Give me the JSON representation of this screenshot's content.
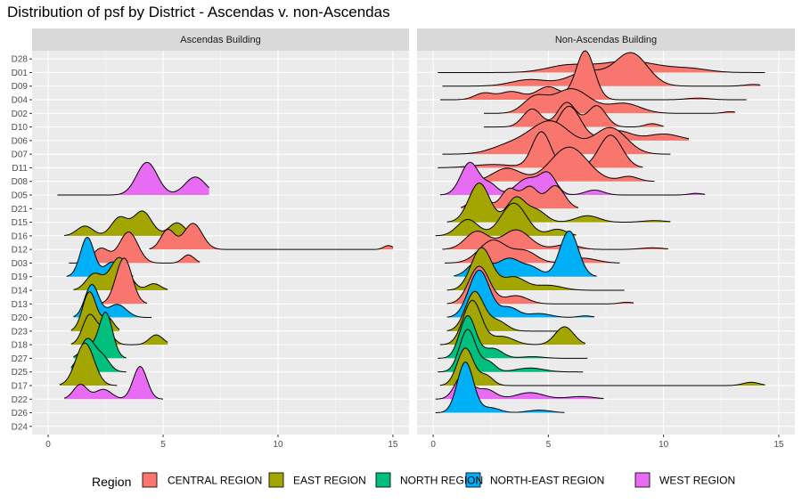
{
  "chart_data": {
    "type": "ridgeline",
    "title": "Distribution of psf by District - Ascendas v. non-Ascendas",
    "panels": [
      "Ascendas Building",
      "Non-Ascendas Building"
    ],
    "districts": [
      "D28",
      "D01",
      "D09",
      "D04",
      "D02",
      "D10",
      "D06",
      "D07",
      "D11",
      "D08",
      "D05",
      "D21",
      "D15",
      "D16",
      "D12",
      "D03",
      "D19",
      "D14",
      "D13",
      "D20",
      "D23",
      "D18",
      "D27",
      "D25",
      "D17",
      "D22",
      "D26",
      "D24"
    ],
    "district_region": {
      "D28": "CENTRAL REGION",
      "D01": "CENTRAL REGION",
      "D09": "CENTRAL REGION",
      "D04": "CENTRAL REGION",
      "D02": "CENTRAL REGION",
      "D10": "CENTRAL REGION",
      "D06": "CENTRAL REGION",
      "D07": "CENTRAL REGION",
      "D11": "CENTRAL REGION",
      "D08": "CENTRAL REGION",
      "D05": "WEST REGION",
      "D21": "CENTRAL REGION",
      "D15": "EAST REGION",
      "D16": "EAST REGION",
      "D12": "CENTRAL REGION",
      "D03": "CENTRAL REGION",
      "D19": "NORTH-EAST REGION",
      "D14": "EAST REGION",
      "D13": "CENTRAL REGION",
      "D20": "NORTH-EAST REGION",
      "D23": "EAST REGION",
      "D18": "EAST REGION",
      "D27": "NORTH REGION",
      "D25": "NORTH REGION",
      "D17": "EAST REGION",
      "D22": "WEST REGION",
      "D26": "NORTH-EAST REGION",
      "D24": "WEST REGION"
    },
    "xlim": [
      -0.7,
      15.7
    ],
    "x_ticks": [
      0,
      5,
      10,
      15
    ],
    "y_labels": [
      "D28",
      "D01",
      "D09",
      "D04",
      "D02",
      "D10",
      "D06",
      "D07",
      "D11",
      "D08",
      "D05",
      "D21",
      "D15",
      "D16",
      "D12",
      "D03",
      "D19",
      "D14",
      "D13",
      "D20",
      "D23",
      "D18",
      "D27",
      "D25",
      "D17",
      "D22",
      "D26",
      "D24"
    ],
    "legend": {
      "title": "Region",
      "position": "bottom",
      "items": [
        {
          "label": "CENTRAL REGION",
          "color": "#F8766D"
        },
        {
          "label": "EAST REGION",
          "color": "#A3A500"
        },
        {
          "label": "NORTH REGION",
          "color": "#00BF7D"
        },
        {
          "label": "NORTH-EAST REGION",
          "color": "#00B0F6"
        },
        {
          "label": "WEST REGION",
          "color": "#E76BF3"
        }
      ]
    },
    "ridges": {
      "Ascendas Building": [
        {
          "district": "D05",
          "region": "WEST REGION",
          "min": 0.4,
          "max": 7.0,
          "peaks": [
            [
              4.3,
              1.0,
              0.45
            ],
            [
              6.4,
              0.55,
              0.45
            ]
          ]
        },
        {
          "district": "D16",
          "region": "EAST REGION",
          "min": 0.7,
          "max": 6.1,
          "peaks": [
            [
              1.6,
              0.3,
              0.35
            ],
            [
              3.1,
              0.55,
              0.35
            ],
            [
              4.1,
              0.75,
              0.4
            ],
            [
              5.6,
              0.4,
              0.35
            ]
          ]
        },
        {
          "district": "D12",
          "region": "CENTRAL REGION",
          "min": 4.4,
          "max": 15.0,
          "peaks": [
            [
              5.2,
              0.6,
              0.3
            ],
            [
              6.3,
              0.8,
              0.4
            ],
            [
              14.8,
              0.12,
              0.2
            ]
          ]
        },
        {
          "district": "D03",
          "region": "CENTRAL REGION",
          "min": 0.9,
          "max": 6.6,
          "peaks": [
            [
              2.3,
              0.45,
              0.35
            ],
            [
              3.5,
              0.95,
              0.4
            ],
            [
              6.1,
              0.25,
              0.25
            ]
          ]
        },
        {
          "district": "D19",
          "region": "NORTH-EAST REGION",
          "min": 0.8,
          "max": 3.7,
          "peaks": [
            [
              1.7,
              1.2,
              0.3
            ],
            [
              2.8,
              0.45,
              0.35
            ]
          ]
        },
        {
          "district": "D14",
          "region": "EAST REGION",
          "min": 1.1,
          "max": 5.2,
          "peaks": [
            [
              2.0,
              0.5,
              0.35
            ],
            [
              3.1,
              1.0,
              0.4
            ],
            [
              4.6,
              0.2,
              0.3
            ]
          ]
        },
        {
          "district": "D13",
          "region": "CENTRAL REGION",
          "min": 2.3,
          "max": 4.3,
          "peaks": [
            [
              3.3,
              1.4,
              0.35
            ]
          ]
        },
        {
          "district": "D20",
          "region": "NORTH-EAST REGION",
          "min": 1.1,
          "max": 4.5,
          "peaks": [
            [
              1.9,
              1.0,
              0.3
            ],
            [
              3.0,
              0.4,
              0.4
            ]
          ]
        },
        {
          "district": "D23",
          "region": "EAST REGION",
          "min": 1.0,
          "max": 3.1,
          "peaks": [
            [
              1.8,
              1.2,
              0.3
            ],
            [
              2.6,
              0.4,
              0.25
            ]
          ]
        },
        {
          "district": "D18",
          "region": "EAST REGION",
          "min": 1.0,
          "max": 5.2,
          "peaks": [
            [
              1.8,
              0.9,
              0.3
            ],
            [
              2.5,
              0.45,
              0.3
            ],
            [
              4.7,
              0.3,
              0.3
            ]
          ]
        },
        {
          "district": "D27",
          "region": "NORTH REGION",
          "min": 1.1,
          "max": 3.4,
          "peaks": [
            [
              2.5,
              1.4,
              0.3
            ],
            [
              1.7,
              0.35,
              0.3
            ]
          ]
        },
        {
          "district": "D25",
          "region": "NORTH REGION",
          "min": 1.0,
          "max": 3.4,
          "peaks": [
            [
              1.7,
              1.0,
              0.35
            ],
            [
              2.4,
              0.4,
              0.3
            ]
          ]
        },
        {
          "district": "D17",
          "region": "EAST REGION",
          "min": 0.5,
          "max": 3.0,
          "peaks": [
            [
              1.6,
              1.3,
              0.4
            ]
          ]
        },
        {
          "district": "D22",
          "region": "WEST REGION",
          "min": 0.7,
          "max": 5.0,
          "peaks": [
            [
              1.4,
              0.45,
              0.3
            ],
            [
              2.4,
              0.3,
              0.35
            ],
            [
              4.0,
              1.0,
              0.3
            ]
          ]
        }
      ],
      "Non-Ascendas Building": [
        {
          "district": "D01",
          "region": "CENTRAL REGION",
          "min": 0.2,
          "max": 14.4,
          "peaks": [
            [
              5.8,
              0.2,
              0.9
            ],
            [
              8.5,
              0.35,
              1.3
            ],
            [
              11.2,
              0.1,
              0.8
            ]
          ]
        },
        {
          "district": "D09",
          "region": "CENTRAL REGION",
          "min": 0.4,
          "max": 14.2,
          "peaks": [
            [
              4.2,
              0.2,
              0.8
            ],
            [
              6.7,
              0.45,
              0.8
            ],
            [
              8.6,
              1.0,
              0.7
            ],
            [
              13.9,
              0.05,
              0.4
            ]
          ]
        },
        {
          "district": "D04",
          "region": "CENTRAL REGION",
          "min": 0.3,
          "max": 13.6,
          "peaks": [
            [
              2.2,
              0.2,
              0.4
            ],
            [
              3.4,
              0.25,
              0.5
            ],
            [
              5.0,
              0.4,
              0.5
            ],
            [
              6.6,
              1.5,
              0.4
            ],
            [
              11.5,
              0.05,
              0.5
            ]
          ]
        },
        {
          "district": "D02",
          "region": "CENTRAL REGION",
          "min": 2.2,
          "max": 13.1,
          "peaks": [
            [
              4.4,
              0.45,
              0.5
            ],
            [
              6.0,
              0.75,
              0.8
            ],
            [
              8.3,
              0.3,
              0.7
            ],
            [
              12.9,
              0.05,
              0.3
            ]
          ]
        },
        {
          "district": "D10",
          "region": "CENTRAL REGION",
          "min": 2.2,
          "max": 10.0,
          "peaks": [
            [
              4.3,
              0.55,
              0.4
            ],
            [
              5.8,
              0.75,
              0.4
            ],
            [
              7.1,
              0.65,
              0.4
            ],
            [
              9.5,
              0.1,
              0.3
            ]
          ]
        },
        {
          "district": "D06",
          "region": "CENTRAL REGION",
          "min": 3.4,
          "max": 11.1,
          "peaks": [
            [
              5.9,
              1.05,
              0.5
            ],
            [
              8.0,
              0.3,
              0.6
            ],
            [
              10.0,
              0.2,
              0.7
            ]
          ]
        },
        {
          "district": "D07",
          "region": "CENTRAL REGION",
          "min": 0.4,
          "max": 10.3,
          "peaks": [
            [
              3.3,
              0.25,
              0.8
            ],
            [
              5.1,
              1.0,
              0.9
            ],
            [
              7.7,
              0.8,
              0.7
            ]
          ]
        },
        {
          "district": "D11",
          "region": "CENTRAL REGION",
          "min": 0.2,
          "max": 9.1,
          "peaks": [
            [
              2.6,
              0.1,
              0.9
            ],
            [
              4.7,
              1.1,
              0.4
            ],
            [
              7.7,
              1.0,
              0.5
            ]
          ]
        },
        {
          "district": "D08",
          "region": "CENTRAL REGION",
          "min": 1.2,
          "max": 9.6,
          "peaks": [
            [
              3.2,
              0.4,
              0.6
            ],
            [
              5.9,
              1.05,
              0.8
            ],
            [
              8.5,
              0.15,
              0.4
            ]
          ]
        },
        {
          "district": "D05",
          "region": "WEST REGION",
          "min": 0.3,
          "max": 11.8,
          "peaks": [
            [
              1.6,
              1.0,
              0.4
            ],
            [
              2.5,
              0.3,
              0.3
            ],
            [
              4.1,
              0.5,
              0.5
            ],
            [
              5.0,
              0.6,
              0.35
            ],
            [
              7.0,
              0.15,
              0.4
            ],
            [
              11.4,
              0.05,
              0.3
            ]
          ]
        },
        {
          "district": "D21",
          "region": "CENTRAL REGION",
          "min": 1.2,
          "max": 6.3,
          "peaks": [
            [
              2.0,
              0.45,
              0.35
            ],
            [
              3.3,
              0.6,
              0.35
            ],
            [
              4.2,
              0.65,
              0.35
            ],
            [
              5.3,
              0.7,
              0.4
            ]
          ]
        },
        {
          "district": "D15",
          "region": "EAST REGION",
          "min": 0.6,
          "max": 10.3,
          "peaks": [
            [
              2.0,
              1.2,
              0.45
            ],
            [
              3.6,
              0.75,
              0.4
            ],
            [
              4.5,
              0.35,
              0.4
            ],
            [
              6.7,
              0.2,
              0.5
            ],
            [
              9.6,
              0.05,
              0.5
            ]
          ]
        },
        {
          "district": "D16",
          "region": "EAST REGION",
          "min": 0.1,
          "max": 6.2,
          "peaks": [
            [
              1.5,
              0.5,
              0.45
            ],
            [
              3.5,
              1.0,
              0.55
            ],
            [
              5.4,
              0.2,
              0.4
            ]
          ]
        },
        {
          "district": "D12",
          "region": "CENTRAL REGION",
          "min": 0.4,
          "max": 10.2,
          "peaks": [
            [
              1.9,
              0.55,
              0.5
            ],
            [
              3.6,
              0.6,
              0.6
            ],
            [
              5.8,
              0.15,
              0.5
            ],
            [
              9.5,
              0.05,
              0.5
            ]
          ]
        },
        {
          "district": "D03",
          "region": "CENTRAL REGION",
          "min": 0.5,
          "max": 8.1,
          "peaks": [
            [
              2.6,
              0.7,
              0.6
            ],
            [
              4.0,
              0.35,
              0.5
            ],
            [
              6.5,
              0.15,
              0.6
            ]
          ]
        },
        {
          "district": "D19",
          "region": "NORTH-EAST REGION",
          "min": 0.9,
          "max": 7.1,
          "peaks": [
            [
              2.0,
              0.5,
              0.45
            ],
            [
              3.3,
              0.55,
              0.5
            ],
            [
              4.3,
              0.25,
              0.4
            ],
            [
              5.9,
              1.4,
              0.4
            ]
          ]
        },
        {
          "district": "D14",
          "region": "EAST REGION",
          "min": 0.6,
          "max": 8.3,
          "peaks": [
            [
              2.1,
              1.3,
              0.45
            ],
            [
              3.5,
              0.4,
              0.5
            ],
            [
              5.0,
              0.15,
              0.6
            ]
          ]
        },
        {
          "district": "D13",
          "region": "CENTRAL REGION",
          "min": 0.6,
          "max": 8.7,
          "peaks": [
            [
              2.0,
              1.15,
              0.45
            ],
            [
              3.6,
              0.25,
              0.5
            ],
            [
              8.4,
              0.05,
              0.3
            ]
          ]
        },
        {
          "district": "D20",
          "region": "NORTH-EAST REGION",
          "min": 0.6,
          "max": 7.0,
          "peaks": [
            [
              2.0,
              1.45,
              0.45
            ],
            [
              3.3,
              0.3,
              0.4
            ],
            [
              4.6,
              0.12,
              0.5
            ],
            [
              6.6,
              0.05,
              0.3
            ]
          ]
        },
        {
          "district": "D23",
          "region": "EAST REGION",
          "min": 0.6,
          "max": 5.8,
          "peaks": [
            [
              1.8,
              1.2,
              0.4
            ],
            [
              2.8,
              0.3,
              0.4
            ]
          ]
        },
        {
          "district": "D18",
          "region": "EAST REGION",
          "min": 0.3,
          "max": 6.6,
          "peaks": [
            [
              1.7,
              1.35,
              0.4
            ],
            [
              3.0,
              0.25,
              0.5
            ],
            [
              5.7,
              0.55,
              0.4
            ]
          ]
        },
        {
          "district": "D27",
          "region": "NORTH REGION",
          "min": 0.2,
          "max": 6.7,
          "peaks": [
            [
              1.5,
              1.3,
              0.35
            ],
            [
              2.6,
              0.3,
              0.4
            ],
            [
              4.3,
              0.05,
              0.5
            ]
          ]
        },
        {
          "district": "D25",
          "region": "NORTH REGION",
          "min": 0.2,
          "max": 6.5,
          "peaks": [
            [
              1.5,
              1.3,
              0.35
            ],
            [
              2.4,
              0.3,
              0.3
            ],
            [
              4.2,
              0.12,
              0.6
            ]
          ]
        },
        {
          "district": "D17",
          "region": "EAST REGION",
          "min": 0.3,
          "max": 14.4,
          "peaks": [
            [
              1.4,
              1.15,
              0.35
            ],
            [
              2.3,
              0.3,
              0.3
            ],
            [
              13.8,
              0.1,
              0.35
            ]
          ]
        },
        {
          "district": "D22",
          "region": "WEST REGION",
          "min": 0.1,
          "max": 7.4,
          "peaks": [
            [
              1.3,
              0.75,
              0.35
            ],
            [
              2.3,
              0.3,
              0.4
            ],
            [
              4.2,
              0.2,
              0.6
            ],
            [
              6.4,
              0.08,
              0.6
            ]
          ]
        },
        {
          "district": "D26",
          "region": "NORTH-EAST REGION",
          "min": 0.1,
          "max": 5.7,
          "peaks": [
            [
              1.4,
              1.55,
              0.35
            ],
            [
              2.5,
              0.15,
              0.4
            ],
            [
              4.6,
              0.08,
              0.5
            ]
          ]
        }
      ]
    }
  }
}
